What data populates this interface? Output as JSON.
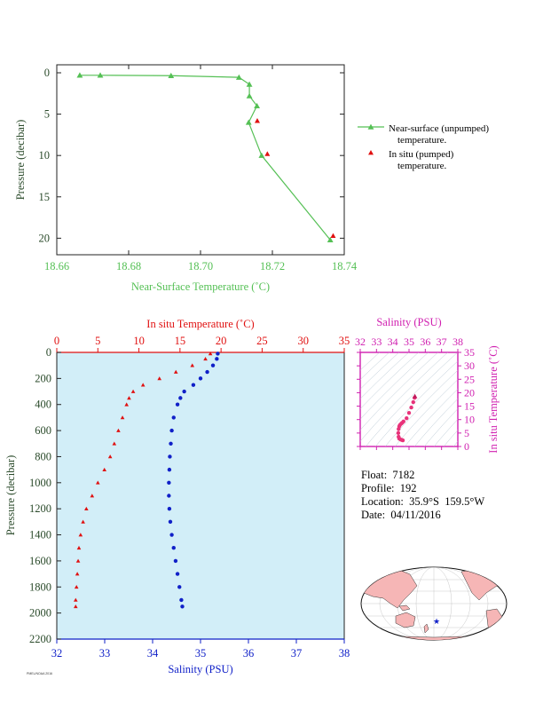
{
  "info": {
    "float": "Float:  7182",
    "profile": "Profile:  192",
    "location": "Location:  35.9°S  159.5°W",
    "date": "Date:  04/11/2016"
  },
  "credit": "PMEL/NOAA 2016",
  "colors": {
    "near_surface": "#55c055",
    "in_situ": "#e01010",
    "salinity": "#1020c8",
    "ts_panel": "#d020b0",
    "plot_bg": "#d2eef8"
  },
  "chart_data": [
    {
      "type": "line",
      "id": "near-surface",
      "xlabel": "Near-Surface Temperature (˚C)",
      "ylabel": "Pressure (decibar)",
      "xlim": [
        18.66,
        18.74
      ],
      "ylim": [
        0,
        22
      ],
      "x_ticks": [
        "18.66",
        "18.68",
        "18.70",
        "18.72",
        "18.74"
      ],
      "y_ticks": [
        "0",
        "5",
        "10",
        "15",
        "20"
      ],
      "series": [
        {
          "name": "Near-surface (unpumped) temperature.",
          "legend_lines": [
            "Near-surface (unpumped)",
            "temperature."
          ],
          "x": [
            18.6664,
            18.6721,
            18.6918,
            18.7107,
            18.7136,
            18.7136,
            18.7157,
            18.7134,
            18.717,
            18.7361
          ],
          "y": [
            0.3,
            0.3,
            0.35,
            0.55,
            1.4,
            2.8,
            4.0,
            6.0,
            10.0,
            20.2
          ]
        },
        {
          "name": "In situ (pumped) temperature.",
          "legend_lines": [
            "In situ (pumped)",
            "temperature."
          ],
          "x": [
            18.7158,
            18.7186,
            18.7369
          ],
          "y": [
            5.8,
            9.8,
            19.7
          ]
        }
      ]
    },
    {
      "type": "scatter",
      "id": "profile",
      "ylabel": "Pressure (decibar)",
      "top_axis": {
        "label": "In situ Temperature (˚C)",
        "lim": [
          0,
          35
        ],
        "ticks": [
          "0",
          "5",
          "10",
          "15",
          "20",
          "25",
          "30",
          "35"
        ]
      },
      "bottom_axis": {
        "label": "Salinity (PSU)",
        "lim": [
          32,
          38
        ],
        "ticks": [
          "32",
          "33",
          "34",
          "35",
          "36",
          "37",
          "38"
        ]
      },
      "ylim": [
        0,
        2200
      ],
      "y_ticks": [
        "0",
        "200",
        "400",
        "600",
        "800",
        "1000",
        "1200",
        "1400",
        "1600",
        "1800",
        "2000",
        "2200"
      ],
      "temperature_profile": {
        "pressure": [
          10,
          50,
          100,
          150,
          200,
          250,
          300,
          350,
          400,
          500,
          600,
          700,
          800,
          900,
          1000,
          1100,
          1200,
          1300,
          1400,
          1500,
          1600,
          1700,
          1800,
          1900,
          1950
        ],
        "value": [
          18.7,
          18.1,
          16.5,
          14.5,
          12.5,
          10.5,
          9.3,
          8.8,
          8.5,
          8.0,
          7.5,
          7.0,
          6.5,
          5.8,
          5.0,
          4.3,
          3.6,
          3.2,
          2.9,
          2.7,
          2.6,
          2.5,
          2.4,
          2.3,
          2.3
        ]
      },
      "salinity_profile": {
        "pressure": [
          10,
          50,
          100,
          150,
          200,
          250,
          300,
          350,
          400,
          500,
          600,
          700,
          800,
          900,
          1000,
          1100,
          1200,
          1300,
          1400,
          1500,
          1600,
          1700,
          1800,
          1900,
          1950
        ],
        "value": [
          35.36,
          35.34,
          35.26,
          35.14,
          35.0,
          34.85,
          34.66,
          34.58,
          34.52,
          34.44,
          34.4,
          34.38,
          34.36,
          34.35,
          34.34,
          34.34,
          34.35,
          34.37,
          34.4,
          34.44,
          34.48,
          34.52,
          34.56,
          34.6,
          34.62
        ]
      }
    },
    {
      "type": "scatter",
      "id": "ts-diagram",
      "xlabel": "Salinity (PSU)",
      "ylabel": "In situ Temperature (˚C)",
      "xlim": [
        32,
        38
      ],
      "ylim": [
        0,
        35
      ],
      "x_ticks": [
        "32",
        "33",
        "34",
        "35",
        "36",
        "37",
        "38"
      ],
      "y_ticks": [
        "0",
        "5",
        "10",
        "15",
        "20",
        "25",
        "30",
        "35"
      ],
      "x": [
        34.62,
        34.56,
        34.48,
        34.4,
        34.36,
        34.34,
        34.36,
        34.4,
        34.44,
        34.52,
        34.58,
        34.66,
        34.85,
        35.0,
        35.14,
        35.26,
        35.34,
        35.36
      ],
      "y": [
        2.3,
        2.4,
        2.6,
        2.9,
        3.6,
        5.0,
        6.5,
        7.5,
        8.0,
        8.5,
        8.8,
        9.3,
        10.5,
        12.5,
        14.5,
        16.5,
        18.1,
        18.7
      ]
    },
    {
      "type": "scatter",
      "id": "location-map",
      "marker": "float location star",
      "lat": -35.9,
      "lon": -159.5
    }
  ]
}
